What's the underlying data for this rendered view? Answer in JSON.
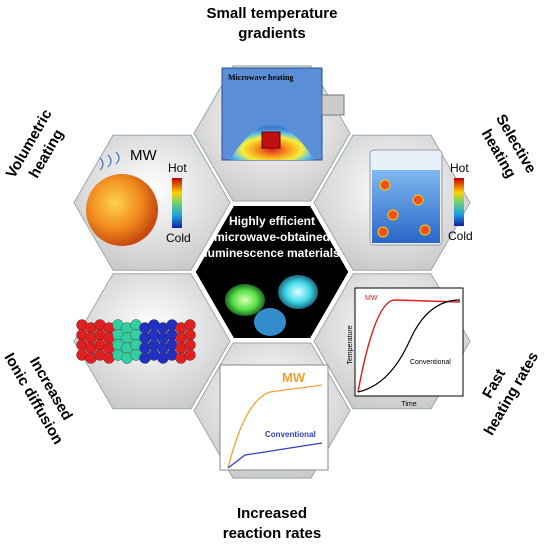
{
  "center": {
    "lines": [
      "Highly efficient",
      "microwave-obtained",
      "luminescence materials"
    ]
  },
  "features": [
    {
      "label": [
        "Small temperature",
        "gradients"
      ],
      "inner": [
        "Microwave heating"
      ]
    },
    {
      "label": [
        "Volumetric",
        "heating"
      ],
      "inner": [
        "MW",
        "Hot",
        "Cold"
      ]
    },
    {
      "label": [
        "Selective",
        "heating"
      ],
      "inner": [
        "Hot",
        "Cold"
      ]
    },
    {
      "label": [
        "Fast",
        "heating rates"
      ],
      "inner": [
        "MW",
        "Temperature",
        "Time",
        "Conventional"
      ]
    },
    {
      "label": [
        "Increased",
        "reaction rates"
      ],
      "inner": [
        "MW",
        "Conventional"
      ]
    },
    {
      "label": [
        "Increased",
        "Ionic diffusion"
      ]
    }
  ]
}
